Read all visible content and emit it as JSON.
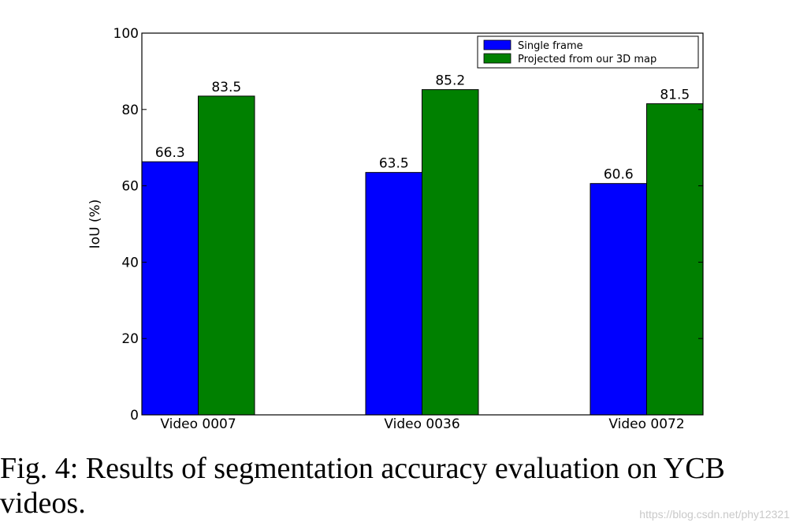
{
  "chart_data": {
    "type": "bar",
    "categories": [
      "Video 0007",
      "Video 0036",
      "Video 0072"
    ],
    "series": [
      {
        "name": "Single frame",
        "color": "#0000ff",
        "values": [
          66.3,
          63.5,
          60.6
        ]
      },
      {
        "name": "Projected from our 3D map",
        "color": "#008000",
        "values": [
          83.5,
          85.2,
          81.5
        ]
      }
    ],
    "data_labels": [
      [
        "66.3",
        "63.5",
        "60.6"
      ],
      [
        "83.5",
        "85.2",
        "81.5"
      ]
    ],
    "ylabel": "IoU (%)",
    "ylim": [
      0,
      100
    ],
    "yticks": [
      "0",
      "20",
      "40",
      "60",
      "80",
      "100"
    ],
    "legend_position": "top-right",
    "grid": false
  },
  "caption": "Fig. 4: Results of segmentation accuracy evaluation on YCB videos.",
  "watermark": "https://blog.csdn.net/phy12321"
}
